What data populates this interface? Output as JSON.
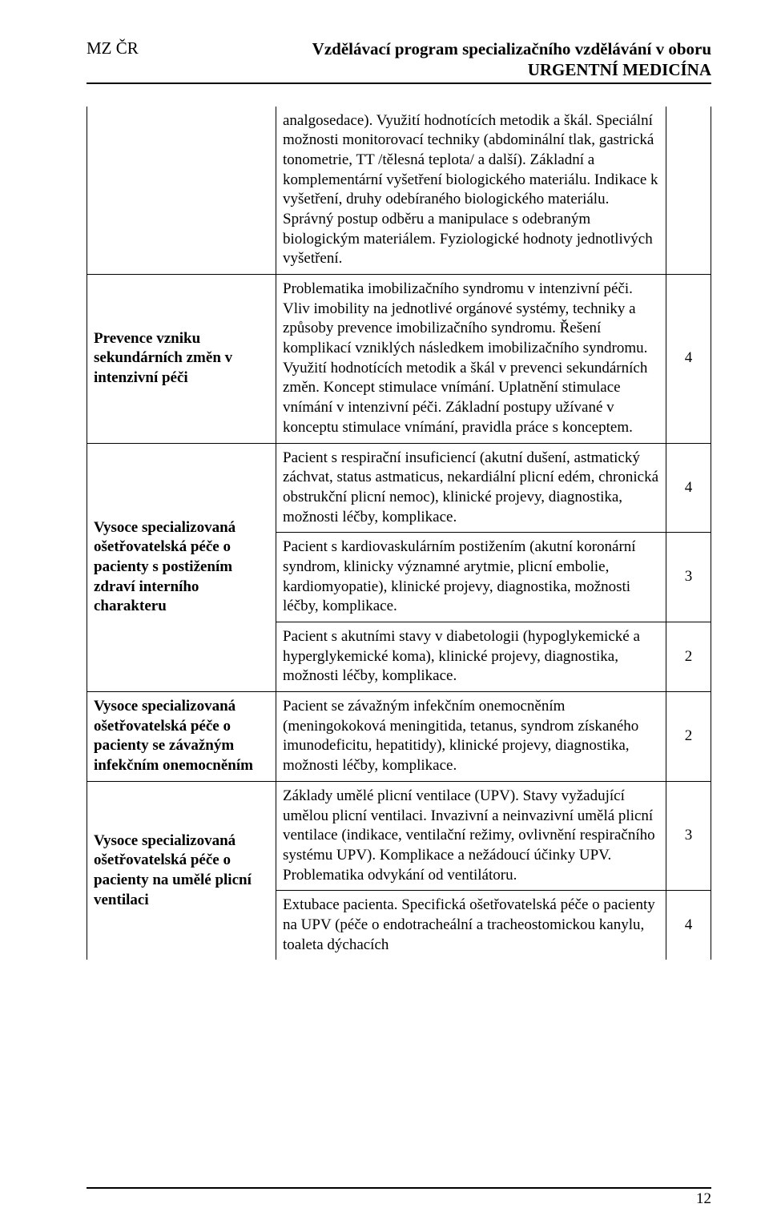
{
  "header": {
    "left": "MZ ČR",
    "right_line1": "Vzdělávací program specializačního vzdělávání v oboru",
    "right_line2": "URGENTNÍ MEDICÍNA"
  },
  "page_number": "12",
  "rows": [
    {
      "left": "",
      "mid": "analgosedace). Využití hodnotících metodik a škál. Speciální možnosti monitorovací techniky (abdominální tlak, gastrická tonometrie, TT /tělesná teplota/ a další). Základní a komplementární vyšetření biologického materiálu. Indikace k vyšetření, druhy odebíraného biologického materiálu. Správný postup odběru a manipulace s odebraným biologickým materiálem. Fyziologické hodnoty jednotlivých vyšetření.",
      "right": ""
    },
    {
      "left": "Prevence vzniku sekundárních změn v intenzivní péči",
      "mid": "Problematika imobilizačního syndromu v intenzivní péči. Vliv imobility na jednotlivé orgánové systémy, techniky a způsoby prevence imobilizačního syndromu. Řešení komplikací vzniklých následkem imobilizačního syndromu. Využití hodnotících metodik a škál v prevenci sekundárních změn. Koncept stimulace vnímání. Uplatnění stimulace vnímání v intenzivní péči. Základní postupy užívané v konceptu stimulace vnímání, pravidla práce s konceptem.",
      "right": "4"
    },
    {
      "left": "Vysoce specializovaná ošetřovatelská péče o pacienty s postižením zdraví interního charakteru",
      "mids": [
        {
          "text": "Pacient s respirační insuficiencí (akutní dušení, astmatický záchvat, status astmaticus, nekardiální plicní edém, chronická obstrukční plicní nemoc), klinické projevy, diagnostika, možnosti léčby, komplikace.",
          "right": "4"
        },
        {
          "text": "Pacient s kardiovaskulárním postižením (akutní koronární syndrom, klinicky významné arytmie, plicní embolie, kardiomyopatie), klinické projevy, diagnostika, možnosti léčby, komplikace.",
          "right": "3"
        },
        {
          "text": "Pacient s akutními stavy v diabetologii (hypoglykemické a hyperglykemické koma), klinické projevy, diagnostika, možnosti léčby, komplikace.",
          "right": "2"
        }
      ]
    },
    {
      "left": "Vysoce specializovaná ošetřovatelská péče o pacienty se závažným infekčním onemocněním",
      "mid": "Pacient se závažným infekčním onemocněním (meningokoková meningitida, tetanus, syndrom získaného imunodeficitu, hepatitidy), klinické projevy, diagnostika, možnosti léčby, komplikace.",
      "right": "2"
    },
    {
      "left": "Vysoce specializovaná ošetřovatelská péče o pacienty na umělé plicní ventilaci",
      "mids": [
        {
          "text": "Základy umělé plicní ventilace (UPV). Stavy vyžadující umělou plicní ventilaci. Invazivní a neinvazivní umělá plicní ventilace (indikace, ventilační režimy, ovlivnění respiračního systému UPV). Komplikace a nežádoucí účinky UPV. Problematika odvykání od ventilátoru.",
          "right": "3"
        },
        {
          "text": "Extubace pacienta. Specifická ošetřovatelská péče o pacienty na UPV (péče o endotracheální a tracheostomickou kanylu, toaleta dýchacích",
          "right": "4"
        }
      ]
    }
  ]
}
